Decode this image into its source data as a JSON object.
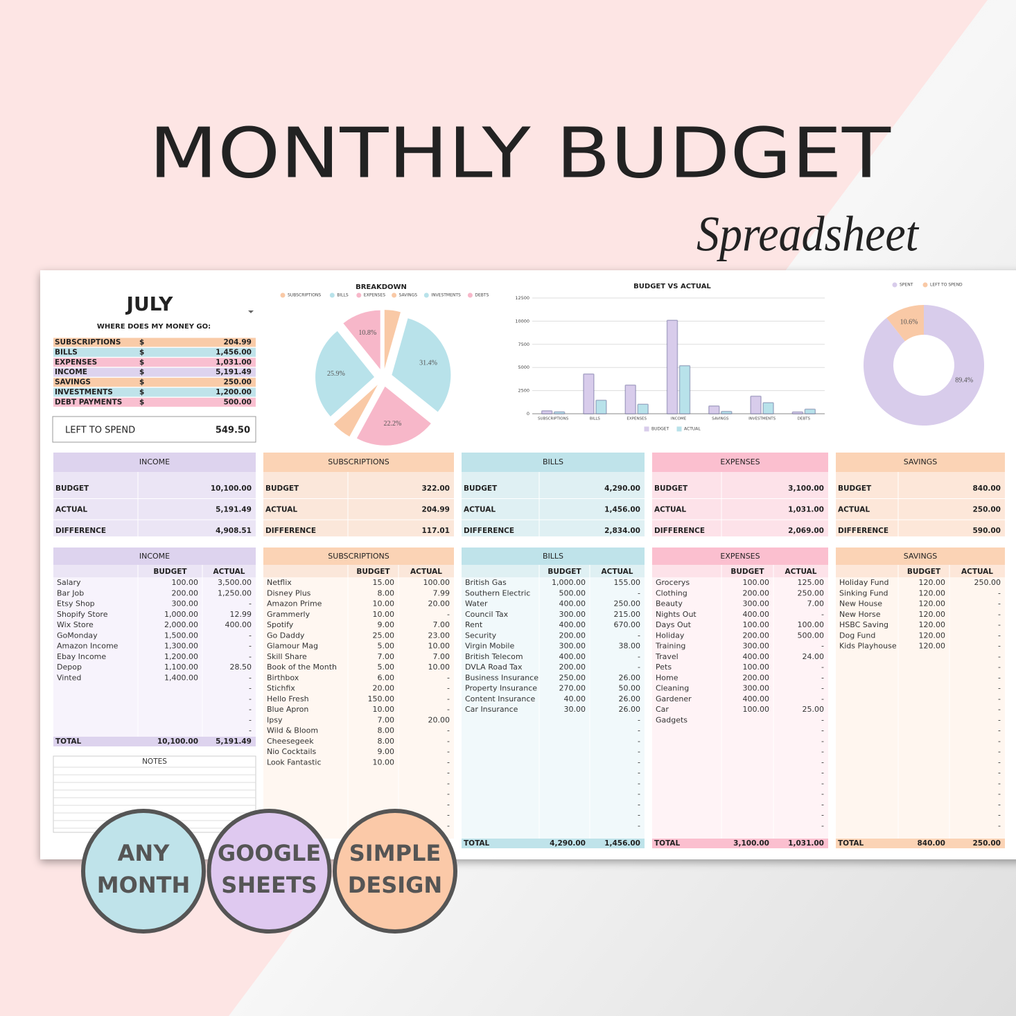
{
  "header": {
    "title": "MONTHLY BUDGET",
    "subtitle": "Spreadsheet"
  },
  "summary": {
    "month": "JULY",
    "heading": "WHERE DOES MY MONEY GO:",
    "rows": [
      [
        "SUBSCRIPTIONS",
        "$",
        "204.99"
      ],
      [
        "BILLS",
        "$",
        "1,456.00"
      ],
      [
        "EXPENSES",
        "$",
        "1,031.00"
      ],
      [
        "INCOME",
        "$",
        "5,191.49"
      ],
      [
        "SAVINGS",
        "$",
        "250.00"
      ],
      [
        "INVESTMENTS",
        "$",
        "1,200.00"
      ],
      [
        "DEBT PAYMENTS",
        "$",
        "500.00"
      ]
    ],
    "left_to_spend": {
      "label": "LEFT TO SPEND",
      "value": "549.50"
    }
  },
  "overview": [
    {
      "title": "INCOME",
      "rows": [
        [
          "BUDGET",
          "10,100.00"
        ],
        [
          "ACTUAL",
          "5,191.49"
        ],
        [
          "DIFFERENCE",
          "4,908.51"
        ]
      ]
    },
    {
      "title": "SUBSCRIPTIONS",
      "rows": [
        [
          "BUDGET",
          "322.00"
        ],
        [
          "ACTUAL",
          "204.99"
        ],
        [
          "DIFFERENCE",
          "117.01"
        ]
      ]
    },
    {
      "title": "BILLS",
      "rows": [
        [
          "BUDGET",
          "4,290.00"
        ],
        [
          "ACTUAL",
          "1,456.00"
        ],
        [
          "DIFFERENCE",
          "2,834.00"
        ]
      ]
    },
    {
      "title": "EXPENSES",
      "rows": [
        [
          "BUDGET",
          "3,100.00"
        ],
        [
          "ACTUAL",
          "1,031.00"
        ],
        [
          "DIFFERENCE",
          "2,069.00"
        ]
      ]
    },
    {
      "title": "SAVINGS",
      "rows": [
        [
          "BUDGET",
          "840.00"
        ],
        [
          "ACTUAL",
          "250.00"
        ],
        [
          "DIFFERENCE",
          "590.00"
        ]
      ]
    }
  ],
  "tables": [
    {
      "title": "INCOME",
      "columns": [
        "BUDGET",
        "ACTUAL"
      ],
      "rows": [
        [
          "Salary",
          "100.00",
          "3,500.00"
        ],
        [
          "Bar Job",
          "200.00",
          "1,250.00"
        ],
        [
          "Etsy Shop",
          "300.00",
          "-"
        ],
        [
          "Shopify Store",
          "1,000.00",
          "12.99"
        ],
        [
          "Wix Store",
          "2,000.00",
          "400.00"
        ],
        [
          "GoMonday",
          "1,500.00",
          "-"
        ],
        [
          "Amazon Income",
          "1,300.00",
          "-"
        ],
        [
          "Ebay Income",
          "1,200.00",
          "-"
        ],
        [
          "Depop",
          "1,100.00",
          "28.50"
        ],
        [
          "Vinted",
          "1,400.00",
          "-"
        ],
        [
          null,
          null,
          "-"
        ],
        [
          null,
          null,
          "-"
        ],
        [
          null,
          null,
          "-"
        ],
        [
          null,
          null,
          "-"
        ],
        [
          null,
          null,
          "-"
        ]
      ],
      "total": [
        "TOTAL",
        "10,100.00",
        "5,191.49"
      ]
    },
    {
      "title": "SUBSCRIPTIONS",
      "columns": [
        "BUDGET",
        "ACTUAL"
      ],
      "rows": [
        [
          "Netflix",
          "15.00",
          "100.00"
        ],
        [
          "Disney Plus",
          "8.00",
          "7.99"
        ],
        [
          "Amazon Prime",
          "10.00",
          "20.00"
        ],
        [
          "Grammerly",
          "10.00",
          "-"
        ],
        [
          "Spotify",
          "9.00",
          "7.00"
        ],
        [
          "Go Daddy",
          "25.00",
          "23.00"
        ],
        [
          "Glamour Mag",
          "5.00",
          "10.00"
        ],
        [
          "Skill Share",
          "7.00",
          "7.00"
        ],
        [
          "Book of the Month",
          "5.00",
          "10.00"
        ],
        [
          "Birthbox",
          "6.00",
          "-"
        ],
        [
          "Stichfix",
          "20.00",
          "-"
        ],
        [
          "Hello Fresh",
          "150.00",
          "-"
        ],
        [
          "Blue Apron",
          "10.00",
          "-"
        ],
        [
          "Ipsy",
          "7.00",
          "20.00"
        ],
        [
          "Wild & Bloom",
          "8.00",
          "-"
        ],
        [
          "Cheesegeek",
          "8.00",
          "-"
        ],
        [
          "Nio Cocktails",
          "9.00",
          "-"
        ],
        [
          "Look Fantastic",
          "10.00",
          "-"
        ],
        [
          null,
          null,
          "-"
        ],
        [
          null,
          null,
          "-"
        ],
        [
          null,
          null,
          "-"
        ],
        [
          null,
          null,
          "-"
        ],
        [
          null,
          null,
          "-"
        ],
        [
          null,
          null,
          "-"
        ]
      ]
    },
    {
      "title": "BILLS",
      "columns": [
        "BUDGET",
        "ACTUAL"
      ],
      "rows": [
        [
          "British Gas",
          "1,000.00",
          "155.00"
        ],
        [
          "Southern Electric",
          "500.00",
          "-"
        ],
        [
          "Water",
          "400.00",
          "250.00"
        ],
        [
          "Council Tax",
          "300.00",
          "215.00"
        ],
        [
          "Rent",
          "400.00",
          "670.00"
        ],
        [
          "Security",
          "200.00",
          "-"
        ],
        [
          "Virgin Mobile",
          "300.00",
          "38.00"
        ],
        [
          "British Telecom",
          "400.00",
          "-"
        ],
        [
          "DVLA Road Tax",
          "200.00",
          "-"
        ],
        [
          "Business Insurance",
          "250.00",
          "26.00"
        ],
        [
          "Property Insurance",
          "270.00",
          "50.00"
        ],
        [
          "Content Insurance",
          "40.00",
          "26.00"
        ],
        [
          "Car Insurance",
          "30.00",
          "26.00"
        ],
        [
          null,
          null,
          "-"
        ],
        [
          null,
          null,
          "-"
        ],
        [
          null,
          null,
          "-"
        ],
        [
          null,
          null,
          "-"
        ],
        [
          null,
          null,
          "-"
        ],
        [
          null,
          null,
          "-"
        ],
        [
          null,
          null,
          "-"
        ],
        [
          null,
          null,
          "-"
        ],
        [
          null,
          null,
          "-"
        ],
        [
          null,
          null,
          "-"
        ],
        [
          null,
          null,
          "-"
        ]
      ],
      "total": [
        "TOTAL",
        "4,290.00",
        "1,456.00"
      ]
    },
    {
      "title": "EXPENSES",
      "columns": [
        "BUDGET",
        "ACTUAL"
      ],
      "rows": [
        [
          "Grocerys",
          "100.00",
          "125.00"
        ],
        [
          "Clothing",
          "200.00",
          "250.00"
        ],
        [
          "Beauty",
          "300.00",
          "7.00"
        ],
        [
          "Nights Out",
          "400.00",
          "-"
        ],
        [
          "Days Out",
          "100.00",
          "100.00"
        ],
        [
          "Holiday",
          "200.00",
          "500.00"
        ],
        [
          "Training",
          "300.00",
          "-"
        ],
        [
          "Travel",
          "400.00",
          "24.00"
        ],
        [
          "Pets",
          "100.00",
          "-"
        ],
        [
          "Home",
          "200.00",
          "-"
        ],
        [
          "Cleaning",
          "300.00",
          "-"
        ],
        [
          "Gardener",
          "400.00",
          "-"
        ],
        [
          "Car",
          "100.00",
          "25.00"
        ],
        [
          "Gadgets",
          null,
          "-"
        ],
        [
          null,
          null,
          "-"
        ],
        [
          null,
          null,
          "-"
        ],
        [
          null,
          null,
          "-"
        ],
        [
          null,
          null,
          "-"
        ],
        [
          null,
          null,
          "-"
        ],
        [
          null,
          null,
          "-"
        ],
        [
          null,
          null,
          "-"
        ],
        [
          null,
          null,
          "-"
        ],
        [
          null,
          null,
          "-"
        ],
        [
          null,
          null,
          "-"
        ]
      ],
      "total": [
        "TOTAL",
        "3,100.00",
        "1,031.00"
      ]
    },
    {
      "title": "SAVINGS",
      "columns": [
        "BUDGET",
        "ACTUAL"
      ],
      "rows": [
        [
          "Holiday Fund",
          "120.00",
          "250.00"
        ],
        [
          "Sinking Fund",
          "120.00",
          "-"
        ],
        [
          "New House",
          "120.00",
          "-"
        ],
        [
          "New Horse",
          "120.00",
          "-"
        ],
        [
          "HSBC Saving",
          "120.00",
          "-"
        ],
        [
          "Dog Fund",
          "120.00",
          "-"
        ],
        [
          "Kids Playhouse",
          "120.00",
          "-"
        ],
        [
          null,
          null,
          "-"
        ],
        [
          null,
          null,
          "-"
        ],
        [
          null,
          null,
          "-"
        ],
        [
          null,
          null,
          "-"
        ],
        [
          null,
          null,
          "-"
        ],
        [
          null,
          null,
          "-"
        ],
        [
          null,
          null,
          "-"
        ],
        [
          null,
          null,
          "-"
        ],
        [
          null,
          null,
          "-"
        ],
        [
          null,
          null,
          "-"
        ],
        [
          null,
          null,
          "-"
        ],
        [
          null,
          null,
          "-"
        ],
        [
          null,
          null,
          "-"
        ],
        [
          null,
          null,
          "-"
        ],
        [
          null,
          null,
          "-"
        ],
        [
          null,
          null,
          "-"
        ],
        [
          null,
          null,
          "-"
        ]
      ],
      "total": [
        "TOTAL",
        "840.00",
        "250.00"
      ]
    }
  ],
  "notes": {
    "title": "NOTES"
  },
  "badges": [
    [
      "ANY",
      "MONTH"
    ],
    [
      "GOOGLE",
      "SHEETS"
    ],
    [
      "SIMPLE",
      "DESIGN"
    ]
  ],
  "chart_data": [
    {
      "type": "pie",
      "title": "BREAKDOWN",
      "categories": [
        "SUBSCRIPTIONS",
        "BILLS",
        "EXPENSES",
        "SAVINGS",
        "INVESTMENTS",
        "DEBTS"
      ],
      "values": [
        4.4,
        31.4,
        22.2,
        5.4,
        25.9,
        10.8
      ],
      "value_labels": [
        null,
        "31.4%",
        "22.2%",
        null,
        "25.9%",
        "10.8%"
      ],
      "colors": [
        "#f9c9a6",
        "#b8e2ea",
        "#f7b7c9",
        "#f9c9a6",
        "#b8e2ea",
        "#f7b7c9"
      ],
      "exploded": true
    },
    {
      "type": "bar",
      "title": "BUDGET VS ACTUAL",
      "categories": [
        "SUBSCRIPTIONS",
        "BILLS",
        "EXPENSES",
        "INCOME",
        "SAVINGS",
        "INVESTMENTS",
        "DEBTS"
      ],
      "series": [
        {
          "name": "BUDGET",
          "color": "#d8cceb",
          "values": [
            322,
            4290,
            3100,
            10100,
            840,
            1900,
            200
          ]
        },
        {
          "name": "ACTUAL",
          "color": "#b8e2ea",
          "values": [
            204.99,
            1456,
            1031,
            5191.49,
            250,
            1200,
            500
          ]
        }
      ],
      "ylim": [
        0,
        12500
      ],
      "yticks": [
        0,
        2500,
        5000,
        7500,
        10000,
        12500
      ],
      "grid": true
    },
    {
      "type": "donut",
      "categories": [
        "SPENT",
        "LEFT TO SPEND"
      ],
      "values": [
        89.4,
        10.6
      ],
      "value_labels": [
        "89.4%",
        "10.6%"
      ],
      "colors": [
        "#d8cceb",
        "#f9c9a6"
      ]
    }
  ]
}
